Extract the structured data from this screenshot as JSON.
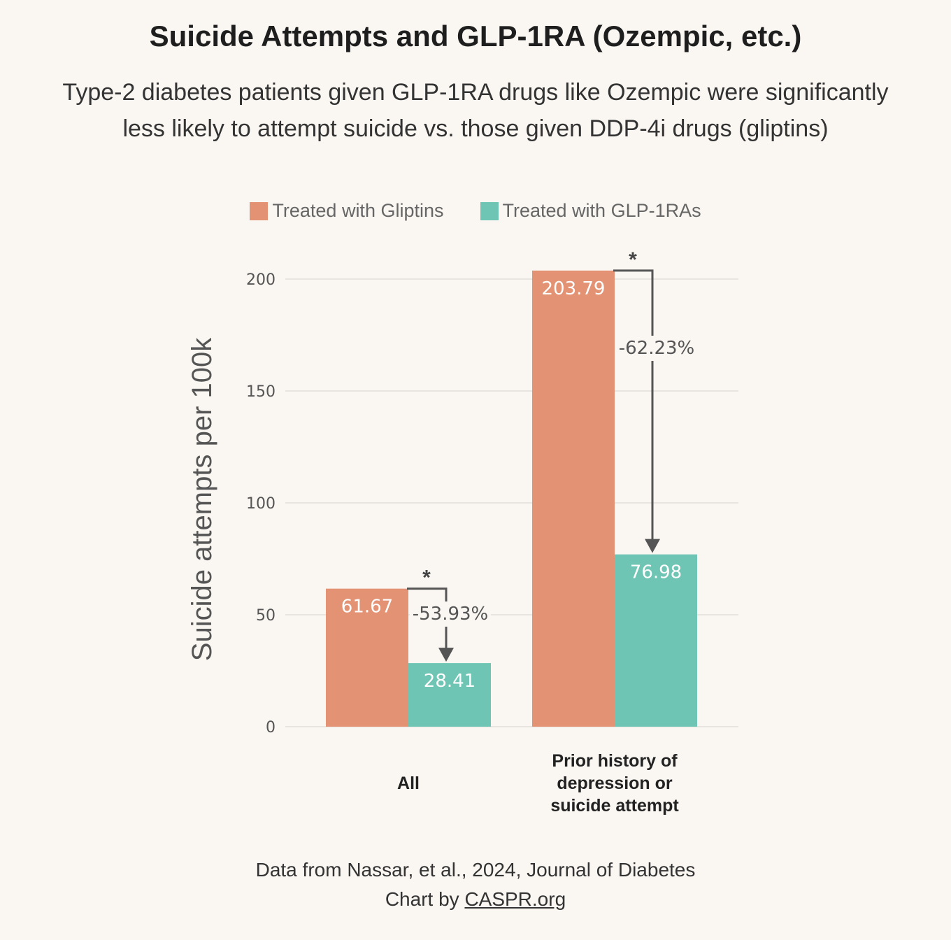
{
  "title": "Suicide Attempts and GLP-1RA (Ozempic, etc.)",
  "subtitle_line1": "Type-2 diabetes patients given GLP-1RA drugs like Ozempic were significantly",
  "subtitle_line2": "less likely to attempt suicide vs. those given DDP-4i drugs (gliptins)",
  "footer": {
    "source": "Data from Nassar, et al., 2024, Journal of Diabetes",
    "credit_prefix": "Chart by",
    "credit_link": "CASPR.org"
  },
  "colors": {
    "gliptins": "#e39374",
    "glp1": "#6ec5b4",
    "arrow": "#555555",
    "grid": "#e8e4e0"
  },
  "chart_data": {
    "type": "bar",
    "ylabel": "Suicide attempts per 100k",
    "ylim": [
      0,
      200
    ],
    "yticks": [
      0,
      50,
      100,
      150,
      200
    ],
    "grid": true,
    "legend_position": "top-center",
    "categories": [
      [
        "All"
      ],
      [
        "Prior history of",
        "depression or",
        "suicide attempt"
      ]
    ],
    "series": [
      {
        "name": "Treated with Gliptins",
        "values": [
          61.67,
          203.79
        ],
        "labels": [
          "61.67",
          "203.79"
        ]
      },
      {
        "name": "Treated with GLP-1RAs",
        "values": [
          28.41,
          76.98
        ],
        "labels": [
          "28.41",
          "76.98"
        ]
      }
    ],
    "annotations": [
      {
        "category_index": 0,
        "change": "-53.93%",
        "significance": "*"
      },
      {
        "category_index": 1,
        "change": "-62.23%",
        "significance": "*"
      }
    ]
  }
}
